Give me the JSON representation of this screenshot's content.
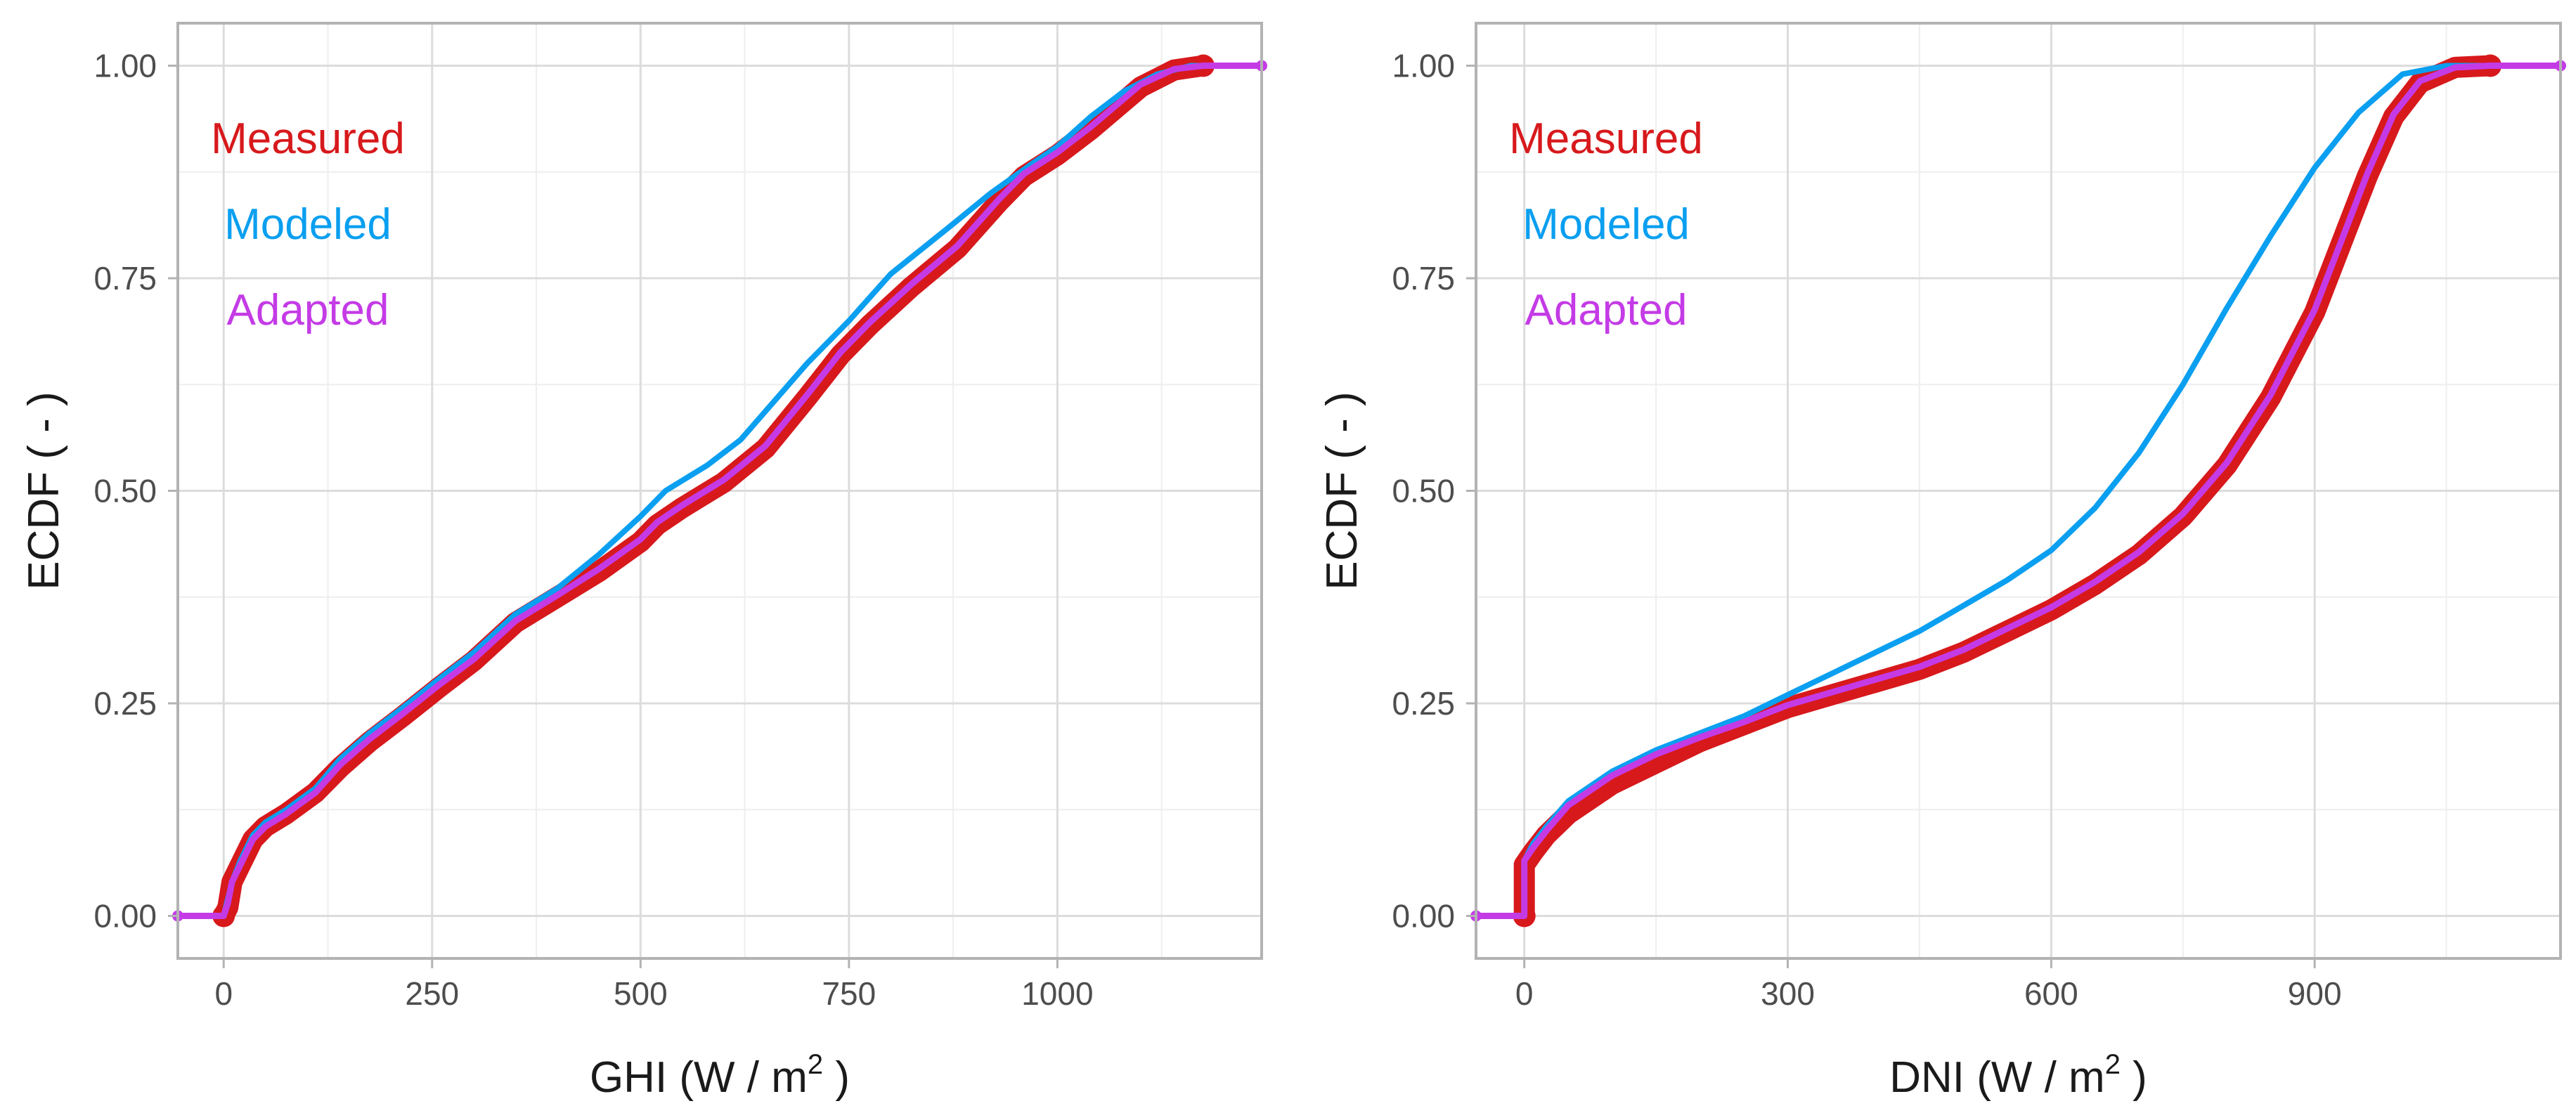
{
  "colors": {
    "measured": "#d7191c",
    "modeled": "#0a9ff0",
    "adapted": "#c43be6"
  },
  "chart_data": [
    {
      "type": "line",
      "xlabel_main": "GHI (W / m",
      "xlabel_sup": "2",
      "xlabel_tail": " )",
      "ylabel": "ECDF ( - )",
      "xlim": [
        -55,
        1245
      ],
      "ylim": [
        -0.05,
        1.05
      ],
      "xticks": [
        0,
        250,
        500,
        750,
        1000
      ],
      "xtick_labels": [
        "0",
        "250",
        "500",
        "750",
        "1000"
      ],
      "xminor": [
        125,
        375,
        625,
        875,
        1125
      ],
      "yticks": [
        0,
        0.25,
        0.5,
        0.75,
        1.0
      ],
      "ytick_labels": [
        "0.00",
        "0.25",
        "0.50",
        "0.75",
        "1.00"
      ],
      "yminor": [
        0.125,
        0.375,
        0.625,
        0.875
      ],
      "legend": [
        "Measured",
        "Modeled",
        "Adapted"
      ],
      "legend_position": "top-left",
      "series": [
        {
          "name": "Measured",
          "color_key": "measured",
          "style": "thick",
          "points": [
            [
              0,
              0
            ],
            [
              5,
              0.01
            ],
            [
              10,
              0.04
            ],
            [
              20,
              0.06
            ],
            [
              35,
              0.09
            ],
            [
              50,
              0.105
            ],
            [
              75,
              0.12
            ],
            [
              110,
              0.145
            ],
            [
              140,
              0.175
            ],
            [
              175,
              0.205
            ],
            [
              215,
              0.235
            ],
            [
              260,
              0.27
            ],
            [
              300,
              0.3
            ],
            [
              350,
              0.345
            ],
            [
              400,
              0.375
            ],
            [
              450,
              0.405
            ],
            [
              500,
              0.44
            ],
            [
              520,
              0.46
            ],
            [
              550,
              0.48
            ],
            [
              600,
              0.51
            ],
            [
              650,
              0.55
            ],
            [
              700,
              0.61
            ],
            [
              740,
              0.66
            ],
            [
              775,
              0.695
            ],
            [
              825,
              0.74
            ],
            [
              880,
              0.785
            ],
            [
              930,
              0.84
            ],
            [
              960,
              0.87
            ],
            [
              1000,
              0.895
            ],
            [
              1040,
              0.925
            ],
            [
              1100,
              0.975
            ],
            [
              1140,
              0.995
            ],
            [
              1175,
              1.0
            ]
          ]
        },
        {
          "name": "Modeled",
          "color_key": "modeled",
          "style": "thin",
          "points": [
            [
              -55,
              0
            ],
            [
              0,
              0
            ],
            [
              5,
              0.02
            ],
            [
              10,
              0.04
            ],
            [
              20,
              0.065
            ],
            [
              35,
              0.095
            ],
            [
              50,
              0.11
            ],
            [
              75,
              0.125
            ],
            [
              110,
              0.15
            ],
            [
              140,
              0.185
            ],
            [
              175,
              0.215
            ],
            [
              215,
              0.245
            ],
            [
              260,
              0.28
            ],
            [
              300,
              0.31
            ],
            [
              350,
              0.355
            ],
            [
              400,
              0.385
            ],
            [
              450,
              0.425
            ],
            [
              500,
              0.47
            ],
            [
              530,
              0.5
            ],
            [
              580,
              0.53
            ],
            [
              620,
              0.56
            ],
            [
              660,
              0.605
            ],
            [
              700,
              0.65
            ],
            [
              750,
              0.7
            ],
            [
              800,
              0.755
            ],
            [
              870,
              0.81
            ],
            [
              920,
              0.85
            ],
            [
              970,
              0.885
            ],
            [
              1000,
              0.905
            ],
            [
              1040,
              0.94
            ],
            [
              1080,
              0.97
            ],
            [
              1120,
              0.99
            ],
            [
              1160,
              1.0
            ],
            [
              1245,
              1.0
            ]
          ]
        },
        {
          "name": "Adapted",
          "color_key": "adapted",
          "style": "medium",
          "points": [
            [
              -55,
              0
            ],
            [
              0,
              0
            ],
            [
              5,
              0.015
            ],
            [
              10,
              0.04
            ],
            [
              20,
              0.06
            ],
            [
              35,
              0.09
            ],
            [
              50,
              0.105
            ],
            [
              75,
              0.12
            ],
            [
              110,
              0.145
            ],
            [
              140,
              0.178
            ],
            [
              175,
              0.208
            ],
            [
              215,
              0.238
            ],
            [
              260,
              0.273
            ],
            [
              300,
              0.302
            ],
            [
              350,
              0.347
            ],
            [
              400,
              0.377
            ],
            [
              450,
              0.408
            ],
            [
              500,
              0.443
            ],
            [
              520,
              0.463
            ],
            [
              550,
              0.483
            ],
            [
              600,
              0.513
            ],
            [
              650,
              0.553
            ],
            [
              700,
              0.613
            ],
            [
              740,
              0.663
            ],
            [
              775,
              0.698
            ],
            [
              825,
              0.743
            ],
            [
              880,
              0.788
            ],
            [
              930,
              0.843
            ],
            [
              960,
              0.873
            ],
            [
              1000,
              0.898
            ],
            [
              1040,
              0.928
            ],
            [
              1100,
              0.978
            ],
            [
              1140,
              0.996
            ],
            [
              1175,
              1.0
            ],
            [
              1245,
              1.0
            ]
          ]
        }
      ]
    },
    {
      "type": "line",
      "xlabel_main": "DNI (W / m",
      "xlabel_sup": "2",
      "xlabel_tail": " )",
      "ylabel": "ECDF ( - )",
      "xlim": [
        -55,
        1180
      ],
      "ylim": [
        -0.05,
        1.05
      ],
      "xticks": [
        0,
        300,
        600,
        900
      ],
      "xtick_labels": [
        "0",
        "300",
        "600",
        "900"
      ],
      "xminor": [
        150,
        450,
        750,
        1050
      ],
      "yticks": [
        0,
        0.25,
        0.5,
        0.75,
        1.0
      ],
      "ytick_labels": [
        "0.00",
        "0.25",
        "0.50",
        "0.75",
        "1.00"
      ],
      "yminor": [
        0.125,
        0.375,
        0.625,
        0.875
      ],
      "legend": [
        "Measured",
        "Modeled",
        "Adapted"
      ],
      "legend_position": "top-left",
      "series": [
        {
          "name": "Measured",
          "color_key": "measured",
          "style": "thick",
          "points": [
            [
              0,
              0
            ],
            [
              0,
              0.06
            ],
            [
              10,
              0.075
            ],
            [
              25,
              0.095
            ],
            [
              50,
              0.12
            ],
            [
              100,
              0.155
            ],
            [
              150,
              0.18
            ],
            [
              200,
              0.205
            ],
            [
              250,
              0.225
            ],
            [
              300,
              0.245
            ],
            [
              350,
              0.26
            ],
            [
              400,
              0.275
            ],
            [
              450,
              0.29
            ],
            [
              500,
              0.31
            ],
            [
              550,
              0.335
            ],
            [
              600,
              0.36
            ],
            [
              650,
              0.39
            ],
            [
              700,
              0.425
            ],
            [
              750,
              0.47
            ],
            [
              800,
              0.53
            ],
            [
              850,
              0.61
            ],
            [
              900,
              0.71
            ],
            [
              930,
              0.79
            ],
            [
              960,
              0.87
            ],
            [
              990,
              0.94
            ],
            [
              1020,
              0.98
            ],
            [
              1060,
              0.998
            ],
            [
              1100,
              1.0
            ]
          ]
        },
        {
          "name": "Modeled",
          "color_key": "modeled",
          "style": "thin",
          "points": [
            [
              -55,
              0
            ],
            [
              0,
              0
            ],
            [
              0,
              0.065
            ],
            [
              10,
              0.085
            ],
            [
              25,
              0.105
            ],
            [
              50,
              0.135
            ],
            [
              100,
              0.17
            ],
            [
              150,
              0.195
            ],
            [
              200,
              0.215
            ],
            [
              250,
              0.235
            ],
            [
              300,
              0.26
            ],
            [
              350,
              0.285
            ],
            [
              400,
              0.31
            ],
            [
              450,
              0.335
            ],
            [
              500,
              0.365
            ],
            [
              550,
              0.395
            ],
            [
              600,
              0.43
            ],
            [
              650,
              0.48
            ],
            [
              700,
              0.545
            ],
            [
              750,
              0.625
            ],
            [
              800,
              0.715
            ],
            [
              850,
              0.8
            ],
            [
              900,
              0.88
            ],
            [
              950,
              0.945
            ],
            [
              1000,
              0.99
            ],
            [
              1050,
              1.0
            ],
            [
              1180,
              1.0
            ]
          ]
        },
        {
          "name": "Adapted",
          "color_key": "adapted",
          "style": "medium",
          "points": [
            [
              -55,
              0
            ],
            [
              0,
              0
            ],
            [
              0,
              0.065
            ],
            [
              10,
              0.08
            ],
            [
              25,
              0.1
            ],
            [
              50,
              0.13
            ],
            [
              100,
              0.165
            ],
            [
              150,
              0.19
            ],
            [
              200,
              0.21
            ],
            [
              250,
              0.228
            ],
            [
              300,
              0.248
            ],
            [
              350,
              0.263
            ],
            [
              400,
              0.278
            ],
            [
              450,
              0.293
            ],
            [
              500,
              0.313
            ],
            [
              550,
              0.338
            ],
            [
              600,
              0.363
            ],
            [
              650,
              0.393
            ],
            [
              700,
              0.428
            ],
            [
              750,
              0.473
            ],
            [
              800,
              0.533
            ],
            [
              850,
              0.613
            ],
            [
              900,
              0.713
            ],
            [
              930,
              0.793
            ],
            [
              960,
              0.873
            ],
            [
              990,
              0.943
            ],
            [
              1020,
              0.982
            ],
            [
              1060,
              0.998
            ],
            [
              1100,
              1.0
            ],
            [
              1180,
              1.0
            ]
          ]
        }
      ]
    }
  ]
}
